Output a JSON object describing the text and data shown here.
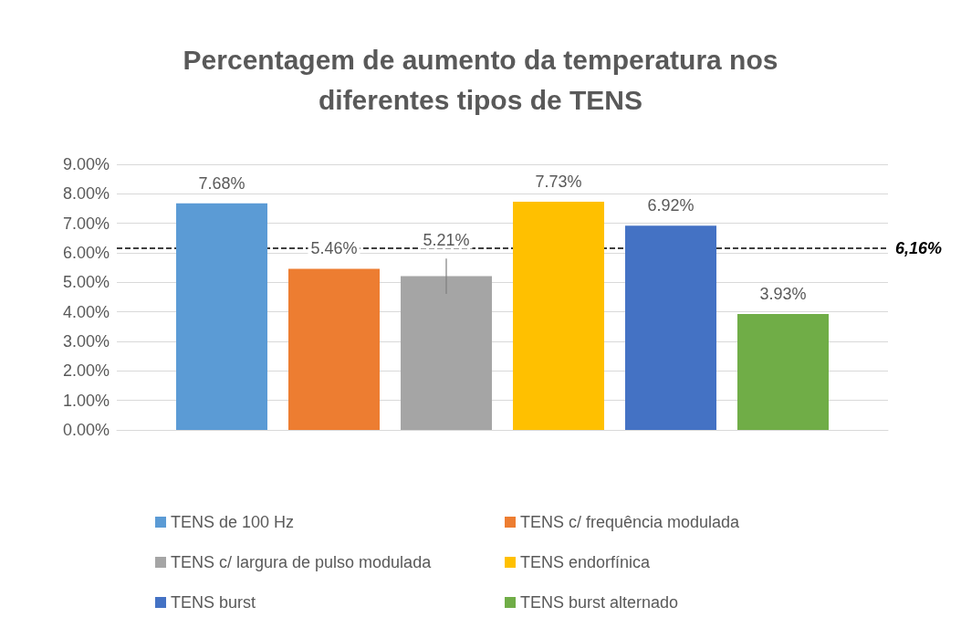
{
  "chart_data": {
    "type": "bar",
    "title": "Percentagem de aumento da temperatura nos\ndiferentes tipos de TENS",
    "categories": [
      null
    ],
    "series": [
      {
        "name": "TENS de 100 Hz",
        "color": "#5b9bd5",
        "values": [
          7.68
        ],
        "value_labels": [
          "7.68%"
        ]
      },
      {
        "name": "TENS c/ frequência modulada",
        "color": "#ed7d31",
        "values": [
          5.46
        ],
        "value_labels": [
          "5.46%"
        ]
      },
      {
        "name": "TENS c/ largura de pulso modulada",
        "color": "#a5a5a5",
        "values": [
          5.21
        ],
        "value_labels": [
          "5.21%"
        ],
        "errors": [
          0.6
        ]
      },
      {
        "name": "TENS endorfínica",
        "color": "#ffc000",
        "values": [
          7.73
        ],
        "value_labels": [
          "7.73%"
        ]
      },
      {
        "name": "TENS burst",
        "color": "#4472c4",
        "values": [
          6.92
        ],
        "value_labels": [
          "6.92%"
        ]
      },
      {
        "name": "TENS burst alternado",
        "color": "#70ad47",
        "values": [
          3.93
        ],
        "value_labels": [
          "3.93%"
        ]
      }
    ],
    "ylim": [
      0,
      9
    ],
    "yticks": [
      {
        "value": 0,
        "label": "0.00%"
      },
      {
        "value": 1,
        "label": "1.00%"
      },
      {
        "value": 2,
        "label": "2.00%"
      },
      {
        "value": 3,
        "label": "3.00%"
      },
      {
        "value": 4,
        "label": "4.00%"
      },
      {
        "value": 5,
        "label": "5.00%"
      },
      {
        "value": 6,
        "label": "6.00%"
      },
      {
        "value": 7,
        "label": "7.00%"
      },
      {
        "value": 8,
        "label": "8.00%"
      },
      {
        "value": 9,
        "label": "9.00%"
      }
    ],
    "ref_lines": [
      {
        "axis": "y",
        "value": 6.16,
        "label": "6,16%",
        "color": "#000000",
        "line_style": "dashed"
      }
    ],
    "grid": "y",
    "legend": "bottom"
  }
}
